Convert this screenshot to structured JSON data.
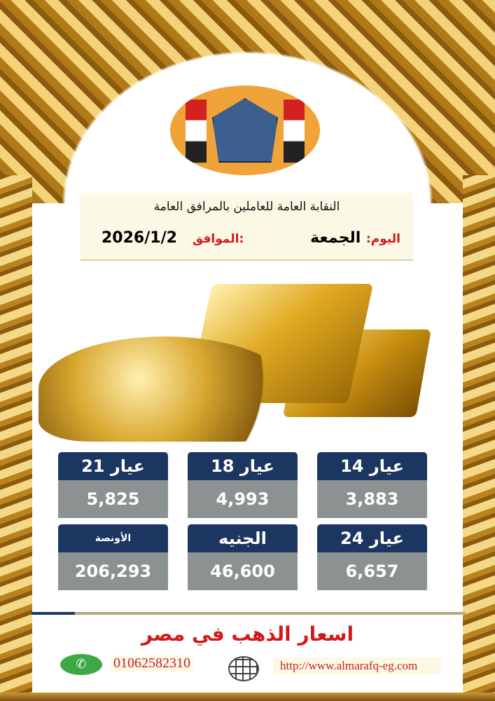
{
  "header": {
    "organization": "النقابة العامة للعاملين بالمرافق العامة",
    "day_label": "اليوم:",
    "day_value": "الجمعة",
    "date_label": "الموافق:",
    "date_value": "2026/1/2"
  },
  "prices": [
    {
      "label": "عيار 21",
      "value": "5,825"
    },
    {
      "label": "عيار 18",
      "value": "4,993"
    },
    {
      "label": "عيار 14",
      "value": "3,883"
    },
    {
      "label": "الأونصة",
      "value": "206,293"
    },
    {
      "label": "الجنيه",
      "value": "46,600"
    },
    {
      "label": "عيار 24",
      "value": "6,657"
    }
  ],
  "footer": {
    "title": "اسعار الذهب في مصر",
    "phone": "01062582310",
    "website": "http://www.almarafq-eg.com"
  },
  "icons": {
    "phone": "whatsapp-icon",
    "web": "globe-icon"
  },
  "colors": {
    "card_header": "#1b3660",
    "card_value": "#8c9192",
    "accent_red": "#d21a1a",
    "gold": "#d9a830"
  }
}
